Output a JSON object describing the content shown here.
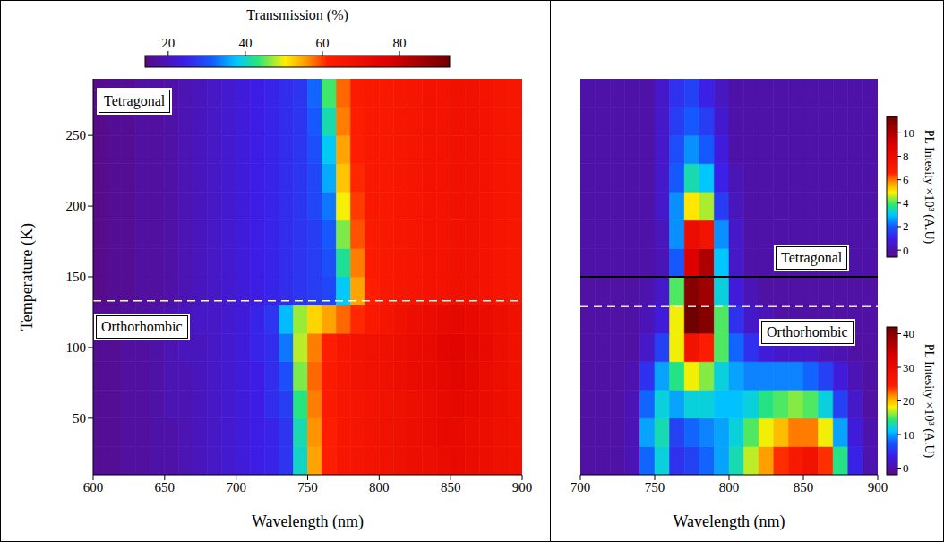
{
  "chart_data": [
    {
      "type": "heatmap",
      "xlabel": "Wavelength (nm)",
      "ylabel": "Temperature (K)",
      "xlim": [
        600,
        900
      ],
      "xticks": [
        600,
        650,
        700,
        750,
        800,
        850,
        900
      ],
      "ylim": [
        10,
        290
      ],
      "yticks": [
        50,
        100,
        150,
        200,
        250
      ],
      "x_bins": [
        600,
        610,
        620,
        630,
        640,
        650,
        660,
        670,
        680,
        690,
        700,
        710,
        720,
        730,
        740,
        750,
        760,
        770,
        780,
        790,
        800,
        810,
        820,
        830,
        840,
        850,
        860,
        870,
        880,
        890,
        900
      ],
      "y_bins": [
        10,
        30,
        50,
        70,
        90,
        110,
        130,
        150,
        170,
        190,
        210,
        230,
        250,
        270,
        290
      ],
      "cells": [
        [
          16,
          16,
          17,
          17,
          18,
          18,
          19,
          20,
          21,
          22,
          23,
          24,
          25,
          27,
          40,
          55,
          62,
          65,
          66,
          67,
          68,
          69,
          70,
          70,
          71,
          72,
          71,
          70,
          69,
          68
        ],
        [
          16,
          16,
          17,
          17,
          18,
          18,
          19,
          20,
          21,
          22,
          23,
          24,
          25,
          27,
          41,
          56,
          62,
          65,
          66,
          67,
          68,
          69,
          70,
          71,
          72,
          72,
          71,
          70,
          69,
          68
        ],
        [
          16,
          16,
          17,
          17,
          18,
          19,
          19,
          20,
          21,
          22,
          23,
          24,
          26,
          28,
          43,
          57,
          63,
          65,
          66,
          67,
          68,
          69,
          70,
          71,
          72,
          73,
          72,
          71,
          70,
          68
        ],
        [
          16,
          16,
          17,
          17,
          18,
          19,
          19,
          20,
          21,
          22,
          23,
          24,
          26,
          30,
          46,
          58,
          63,
          65,
          67,
          68,
          69,
          70,
          71,
          72,
          73,
          74,
          73,
          71,
          70,
          68
        ],
        [
          16,
          16,
          17,
          17,
          18,
          19,
          20,
          20,
          21,
          22,
          23,
          25,
          26,
          33,
          48,
          57,
          62,
          65,
          67,
          68,
          69,
          70,
          71,
          72,
          74,
          75,
          73,
          72,
          70,
          68
        ],
        [
          16,
          16,
          17,
          17,
          18,
          19,
          20,
          21,
          21,
          22,
          23,
          25,
          27,
          37,
          47,
          52,
          55,
          58,
          61,
          64,
          66,
          68,
          70,
          71,
          72,
          73,
          72,
          71,
          70,
          68
        ],
        [
          15,
          16,
          16,
          17,
          17,
          18,
          19,
          20,
          21,
          22,
          23,
          24,
          25,
          26,
          27,
          28,
          29,
          38,
          55,
          62,
          64,
          65,
          66,
          67,
          67,
          68,
          68,
          67,
          66,
          65
        ],
        [
          15,
          16,
          16,
          17,
          17,
          18,
          19,
          20,
          21,
          22,
          23,
          24,
          25,
          26,
          27,
          28,
          30,
          42,
          57,
          63,
          64,
          65,
          66,
          67,
          67,
          68,
          68,
          67,
          66,
          65
        ],
        [
          15,
          16,
          16,
          17,
          17,
          18,
          19,
          20,
          21,
          22,
          23,
          24,
          25,
          26,
          27,
          28,
          31,
          46,
          59,
          63,
          64,
          65,
          66,
          67,
          67,
          68,
          68,
          67,
          66,
          65
        ],
        [
          15,
          16,
          16,
          17,
          17,
          18,
          19,
          20,
          21,
          22,
          23,
          24,
          25,
          26,
          27,
          29,
          33,
          50,
          60,
          64,
          64,
          65,
          66,
          67,
          67,
          68,
          68,
          67,
          66,
          65
        ],
        [
          15,
          16,
          16,
          17,
          17,
          18,
          19,
          20,
          21,
          22,
          23,
          24,
          25,
          26,
          27,
          29,
          36,
          53,
          61,
          64,
          64,
          65,
          66,
          67,
          67,
          68,
          68,
          67,
          66,
          65
        ],
        [
          15,
          16,
          16,
          17,
          17,
          18,
          19,
          20,
          21,
          22,
          23,
          24,
          25,
          26,
          27,
          30,
          38,
          55,
          62,
          64,
          64,
          65,
          66,
          67,
          67,
          68,
          68,
          67,
          66,
          65
        ],
        [
          15,
          16,
          16,
          17,
          17,
          18,
          19,
          20,
          21,
          22,
          23,
          24,
          25,
          26,
          27,
          31,
          41,
          57,
          62,
          64,
          64,
          65,
          66,
          67,
          67,
          68,
          68,
          67,
          66,
          65
        ],
        [
          15,
          16,
          16,
          17,
          17,
          18,
          19,
          20,
          21,
          22,
          23,
          24,
          25,
          26,
          27,
          32,
          44,
          58,
          63,
          64,
          64,
          65,
          66,
          67,
          67,
          68,
          68,
          67,
          66,
          65
        ]
      ],
      "colorbar": {
        "title": "Transmission (%)",
        "range": [
          14,
          93
        ],
        "ticks": [
          20,
          40,
          60,
          80
        ]
      },
      "annotations": [
        "Tetragonal",
        "Orthorhombic"
      ],
      "dashed_line": 133
    },
    {
      "type": "heatmap",
      "xlabel": "Wavelength (nm)",
      "xlim": [
        700,
        900
      ],
      "xticks": [
        700,
        750,
        800,
        850,
        900
      ],
      "ylim": [
        10,
        290
      ],
      "yticks": [
        50,
        100,
        150,
        200,
        250
      ],
      "tick_labels": "x",
      "x_bins": [
        700,
        710,
        720,
        730,
        740,
        750,
        760,
        770,
        780,
        790,
        800,
        810,
        820,
        830,
        840,
        850,
        860,
        870,
        880,
        890,
        900
      ],
      "y_bins": [
        10,
        30,
        50,
        70,
        90,
        110,
        130,
        150,
        170,
        190,
        210,
        230,
        250,
        270,
        290
      ],
      "cells": [
        [
          0,
          0,
          0,
          1,
          8,
          12,
          5,
          6,
          8,
          10,
          13,
          17,
          21,
          24,
          26,
          28,
          24,
          14,
          4,
          0.5
        ],
        [
          0,
          0,
          0,
          1,
          10,
          13,
          6,
          8,
          9,
          10,
          12,
          15,
          18,
          20,
          22,
          22,
          18,
          10,
          3,
          0.5
        ],
        [
          0,
          0,
          0,
          1,
          8,
          12,
          10,
          12,
          12,
          11,
          11,
          12,
          14,
          15,
          16,
          15,
          12,
          6,
          2,
          0
        ],
        [
          0,
          0,
          0,
          0.5,
          5,
          10,
          14,
          18,
          16,
          12,
          10,
          9,
          9,
          9,
          9,
          8,
          6,
          3,
          1,
          0
        ],
        [
          0,
          0,
          0,
          0,
          2,
          6,
          18,
          28,
          25,
          15,
          8,
          5,
          3,
          2,
          2,
          2,
          1,
          0.5,
          0,
          0
        ],
        [
          0,
          0,
          0,
          0,
          1,
          3,
          18,
          42,
          40,
          15,
          5,
          2,
          1,
          0,
          0,
          0,
          0,
          0,
          0,
          0
        ],
        [
          0,
          0,
          0,
          0,
          0.5,
          2,
          15,
          40,
          38,
          12,
          3,
          1,
          0,
          0,
          0,
          0,
          0,
          0,
          0,
          0
        ],
        [
          0,
          0,
          0,
          0,
          0,
          0.2,
          2,
          9,
          10,
          3,
          0.5,
          0,
          0,
          0,
          0,
          0,
          0,
          0,
          0,
          0
        ],
        [
          0,
          0,
          0,
          0,
          0,
          0.3,
          2.5,
          8,
          7.5,
          2.5,
          0.5,
          0,
          0,
          0,
          0,
          0,
          0,
          0,
          0,
          0
        ],
        [
          0,
          0,
          0,
          0,
          0,
          0.5,
          2.5,
          5,
          4.5,
          1.5,
          0.3,
          0,
          0,
          0,
          0,
          0,
          0,
          0,
          0,
          0
        ],
        [
          0,
          0,
          0,
          0,
          0,
          0.5,
          2,
          3.5,
          3,
          1,
          0.2,
          0,
          0,
          0,
          0,
          0,
          0,
          0,
          0,
          0
        ],
        [
          0,
          0,
          0,
          0,
          0,
          0.5,
          1.8,
          2.5,
          2,
          0.8,
          0,
          0,
          0,
          0,
          0,
          0,
          0,
          0,
          0,
          0
        ],
        [
          0,
          0,
          0,
          0,
          0,
          0.5,
          1.5,
          2,
          1.5,
          0.6,
          0,
          0,
          0,
          0,
          0,
          0,
          0,
          0,
          0,
          0
        ],
        [
          0,
          0,
          0,
          0,
          0,
          0.5,
          1.3,
          1.6,
          1,
          0.4,
          0,
          0,
          0,
          0,
          0,
          0,
          0,
          0,
          0,
          0
        ]
      ],
      "colorbars": [
        {
          "title": "PL Intesity ×10³ (A.U)",
          "label": "Tetragonal",
          "t_range": [
            150,
            290
          ],
          "range": [
            -0.6,
            11.4
          ],
          "ticks": [
            0,
            2,
            4,
            6,
            8,
            10
          ]
        },
        {
          "title": "PL Intesity ×10³ (A.U)",
          "label": "Orthorhombic",
          "t_range": [
            10,
            150
          ],
          "range": [
            -2,
            42
          ],
          "ticks": [
            0,
            10,
            20,
            30,
            40
          ]
        }
      ],
      "phase_boundary": 150,
      "dashed_line": 129
    }
  ]
}
